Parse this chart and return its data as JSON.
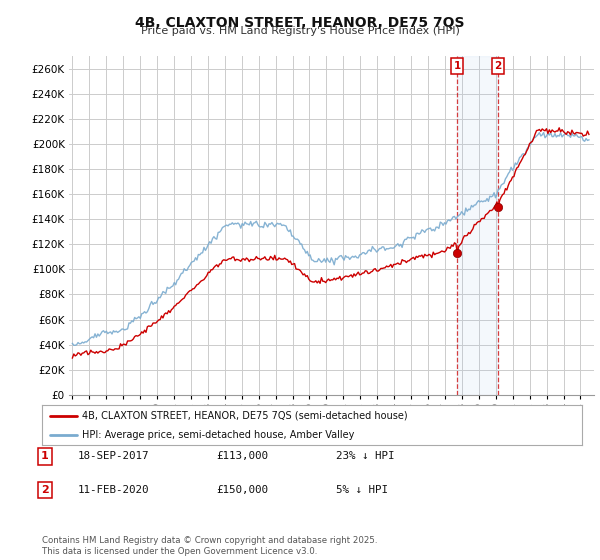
{
  "title": "4B, CLAXTON STREET, HEANOR, DE75 7QS",
  "subtitle": "Price paid vs. HM Land Registry's House Price Index (HPI)",
  "bg_color": "#ffffff",
  "grid_color": "#cccccc",
  "hpi_color": "#7aabcf",
  "price_color": "#cc0000",
  "marker_color": "#cc0000",
  "ylim": [
    0,
    270000
  ],
  "yticks": [
    0,
    20000,
    40000,
    60000,
    80000,
    100000,
    120000,
    140000,
    160000,
    180000,
    200000,
    220000,
    240000,
    260000
  ],
  "xlim_start": 1994.8,
  "xlim_end": 2025.8,
  "transactions": [
    {
      "date": 2017.72,
      "price": 113000,
      "label": "1",
      "pct": "23% ↓ HPI",
      "date_str": "18-SEP-2017"
    },
    {
      "date": 2020.12,
      "price": 150000,
      "label": "2",
      "pct": "5% ↓ HPI",
      "date_str": "11-FEB-2020"
    }
  ],
  "legend_entries": [
    "4B, CLAXTON STREET, HEANOR, DE75 7QS (semi-detached house)",
    "HPI: Average price, semi-detached house, Amber Valley"
  ],
  "footer": "Contains HM Land Registry data © Crown copyright and database right 2025.\nThis data is licensed under the Open Government Licence v3.0.",
  "table_rows": [
    [
      "1",
      "18-SEP-2017",
      "£113,000",
      "23% ↓ HPI"
    ],
    [
      "2",
      "11-FEB-2020",
      "£150,000",
      "5% ↓ HPI"
    ]
  ]
}
